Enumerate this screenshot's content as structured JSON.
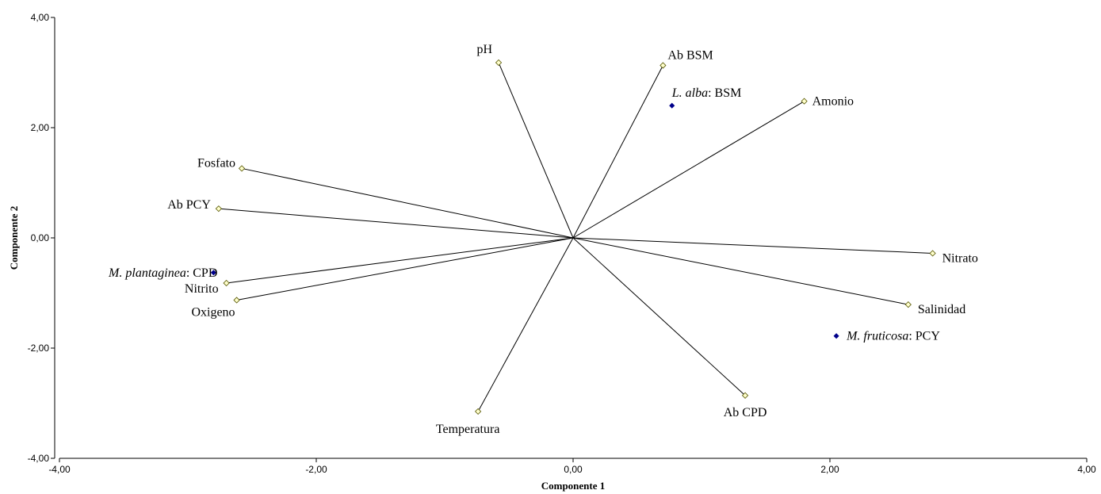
{
  "chart_data": {
    "type": "biplot",
    "xlabel": "Componente 1",
    "ylabel": "Componente 2",
    "xlim": [
      -4,
      4
    ],
    "ylim": [
      -4,
      4
    ],
    "x_ticks": [
      -4,
      -2,
      0,
      2,
      4
    ],
    "y_ticks": [
      -4,
      -2,
      0,
      2,
      4
    ],
    "x_tick_labels": [
      "-4,00",
      "-2,00",
      "0,00",
      "2,00",
      "4,00"
    ],
    "y_tick_labels": [
      "-4,00",
      "-2,00",
      "0,00",
      "2,00",
      "4,00"
    ],
    "grid": false,
    "colors": {
      "vector_marker": "#ffffcc",
      "species_marker": "#00008b",
      "line": "#000000"
    },
    "vectors": [
      {
        "label": "pH",
        "x": -0.58,
        "y": 3.18
      },
      {
        "label": "Ab BSM",
        "x": 0.7,
        "y": 3.13
      },
      {
        "label": "Amonio",
        "x": 1.8,
        "y": 2.48
      },
      {
        "label": "Fosfato",
        "x": -2.58,
        "y": 1.26
      },
      {
        "label": "Ab PCY",
        "x": -2.76,
        "y": 0.53
      },
      {
        "label": "Nitrato",
        "x": 2.8,
        "y": -0.28
      },
      {
        "label": "Salinidad",
        "x": 2.61,
        "y": -1.21
      },
      {
        "label": "Nitrito",
        "x": -2.7,
        "y": -0.82
      },
      {
        "label": "Oxigeno",
        "x": -2.62,
        "y": -1.13
      },
      {
        "label": "Ab CPD",
        "x": 1.34,
        "y": -2.86
      },
      {
        "label": "Temperatura",
        "x": -0.74,
        "y": -3.15
      }
    ],
    "species": [
      {
        "label_italic": "L. alba",
        "label_rest": ": BSM",
        "x": 0.77,
        "y": 2.4
      },
      {
        "label_italic": "M. plantaginea",
        "label_rest": ": CPD",
        "x": -2.8,
        "y": -0.63
      },
      {
        "label_italic": "M. fruticosa",
        "label_rest": ": PCY",
        "x": 2.05,
        "y": -1.78
      }
    ]
  }
}
